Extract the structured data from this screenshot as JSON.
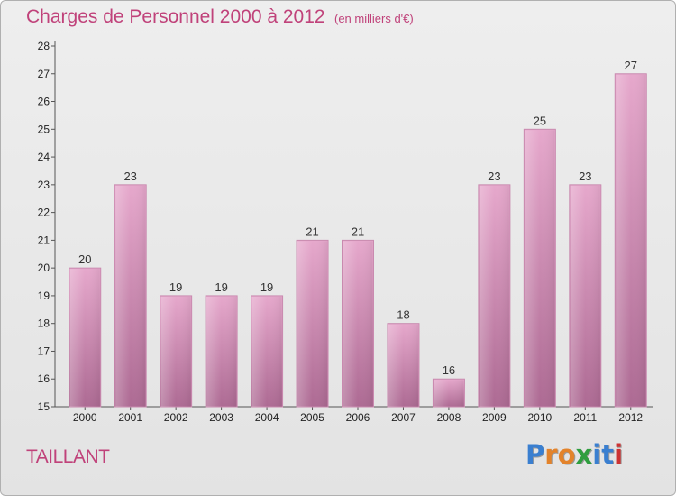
{
  "chart_data": {
    "type": "bar",
    "title": "Charges de Personnel 2000 à 2012",
    "subtitle": "(en milliers d'€)",
    "categories": [
      "2000",
      "2001",
      "2002",
      "2003",
      "2004",
      "2005",
      "2006",
      "2007",
      "2008",
      "2009",
      "2010",
      "2011",
      "2012"
    ],
    "values": [
      20,
      23,
      19,
      19,
      19,
      21,
      21,
      18,
      16,
      23,
      25,
      23,
      27
    ],
    "xlabel": "",
    "ylabel": "",
    "ylim": [
      15,
      28
    ],
    "yticks": [
      15,
      16,
      17,
      18,
      19,
      20,
      21,
      22,
      23,
      24,
      25,
      26,
      27,
      28
    ],
    "grid": false,
    "bar_color": "#d98fb8"
  },
  "commune": "TAILLANT",
  "logo": {
    "letters": [
      "P",
      "r",
      "o",
      "x",
      "i",
      "t",
      "i"
    ],
    "colors": [
      "#3a7fd0",
      "#e3832b",
      "#e3832b",
      "#2f9e3f",
      "#3a7fd0",
      "#3a7fd0",
      "#cc3333"
    ]
  }
}
